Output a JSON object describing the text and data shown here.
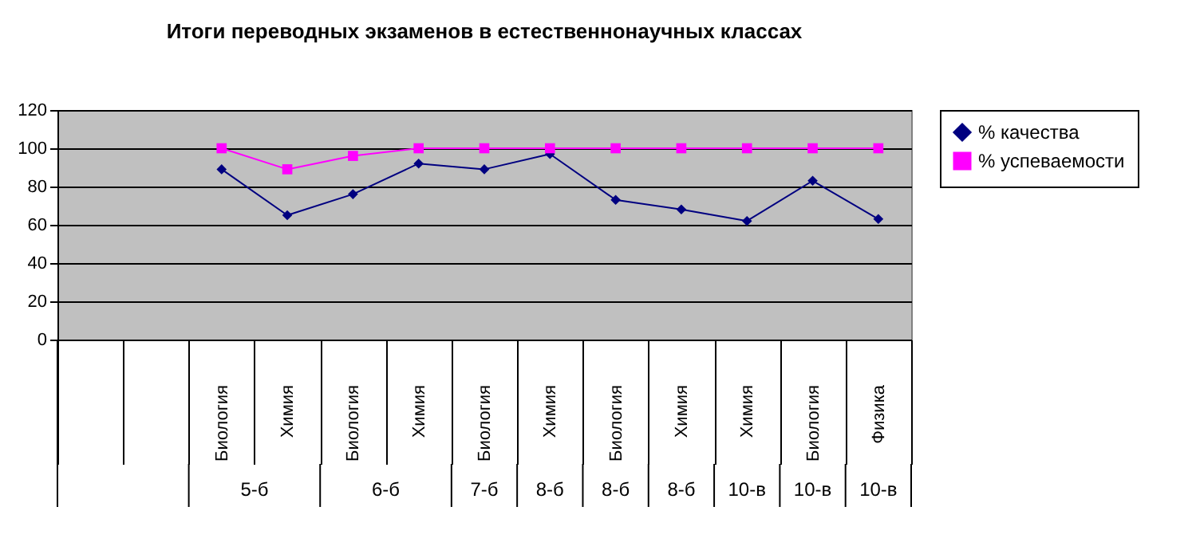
{
  "chart_data": {
    "type": "line",
    "title": "Итоги переводных экзаменов в естественнонаучных классах",
    "categories": [
      null,
      null,
      "Биология",
      "Химия",
      "Биология",
      "Химия",
      "Биология",
      "Химия",
      "Биология",
      "Химия",
      "Химия",
      "Биология",
      "Физика"
    ],
    "series": [
      {
        "name": "% качества",
        "color": "#000080",
        "marker": "diamond",
        "values": [
          null,
          null,
          89,
          65,
          76,
          92,
          89,
          97,
          73,
          68,
          62,
          83,
          63
        ]
      },
      {
        "name": "% успеваемости",
        "color": "#ff00ff",
        "marker": "square",
        "values": [
          null,
          null,
          100,
          89,
          96,
          100,
          100,
          100,
          100,
          100,
          100,
          100,
          100
        ]
      }
    ],
    "annotations": [
      "5-б",
      "6-б",
      "7-б",
      "8-б",
      "8-б",
      "8-б",
      "10-в",
      "10-в",
      "10-в"
    ],
    "ylim": [
      0,
      120
    ],
    "yticks": [
      0,
      20,
      40,
      60,
      80,
      100,
      120
    ],
    "grid": "y",
    "legend": "right",
    "line_style": "solid"
  }
}
